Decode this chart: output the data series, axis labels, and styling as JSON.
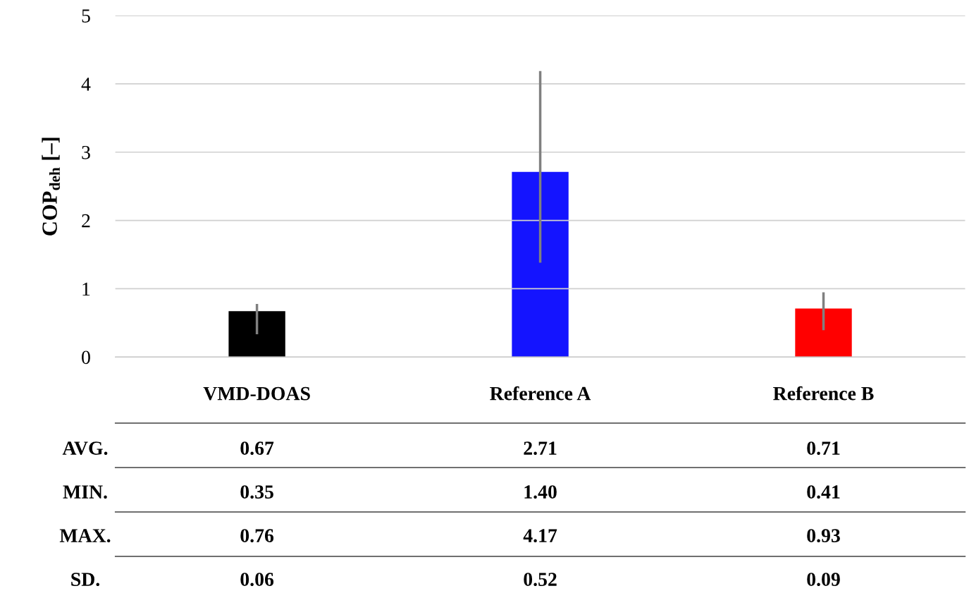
{
  "chart_data": {
    "type": "bar",
    "ylabel": "COP$_{deh}$ [–]",
    "categories": [
      "VMD-DOAS",
      "Reference A",
      "Reference B"
    ],
    "values": [
      0.67,
      2.71,
      0.71
    ],
    "colors": [
      "#000000",
      "#1414ff",
      "#ff0000"
    ],
    "errors": [
      [
        0.35,
        0.76
      ],
      [
        1.4,
        4.17
      ],
      [
        0.41,
        0.93
      ]
    ],
    "ylim": [
      0,
      5
    ],
    "yticks": [
      0,
      1,
      2,
      3,
      4,
      5
    ],
    "grid": "y",
    "data_labels": true,
    "annotations": [
      "AVG.",
      "MIN.",
      "MAX.",
      "SD.",
      "0.35",
      "1.40",
      "0.41",
      "0.76",
      "4.17",
      "0.93",
      "0.06",
      "0.52",
      "0.09"
    ]
  }
}
